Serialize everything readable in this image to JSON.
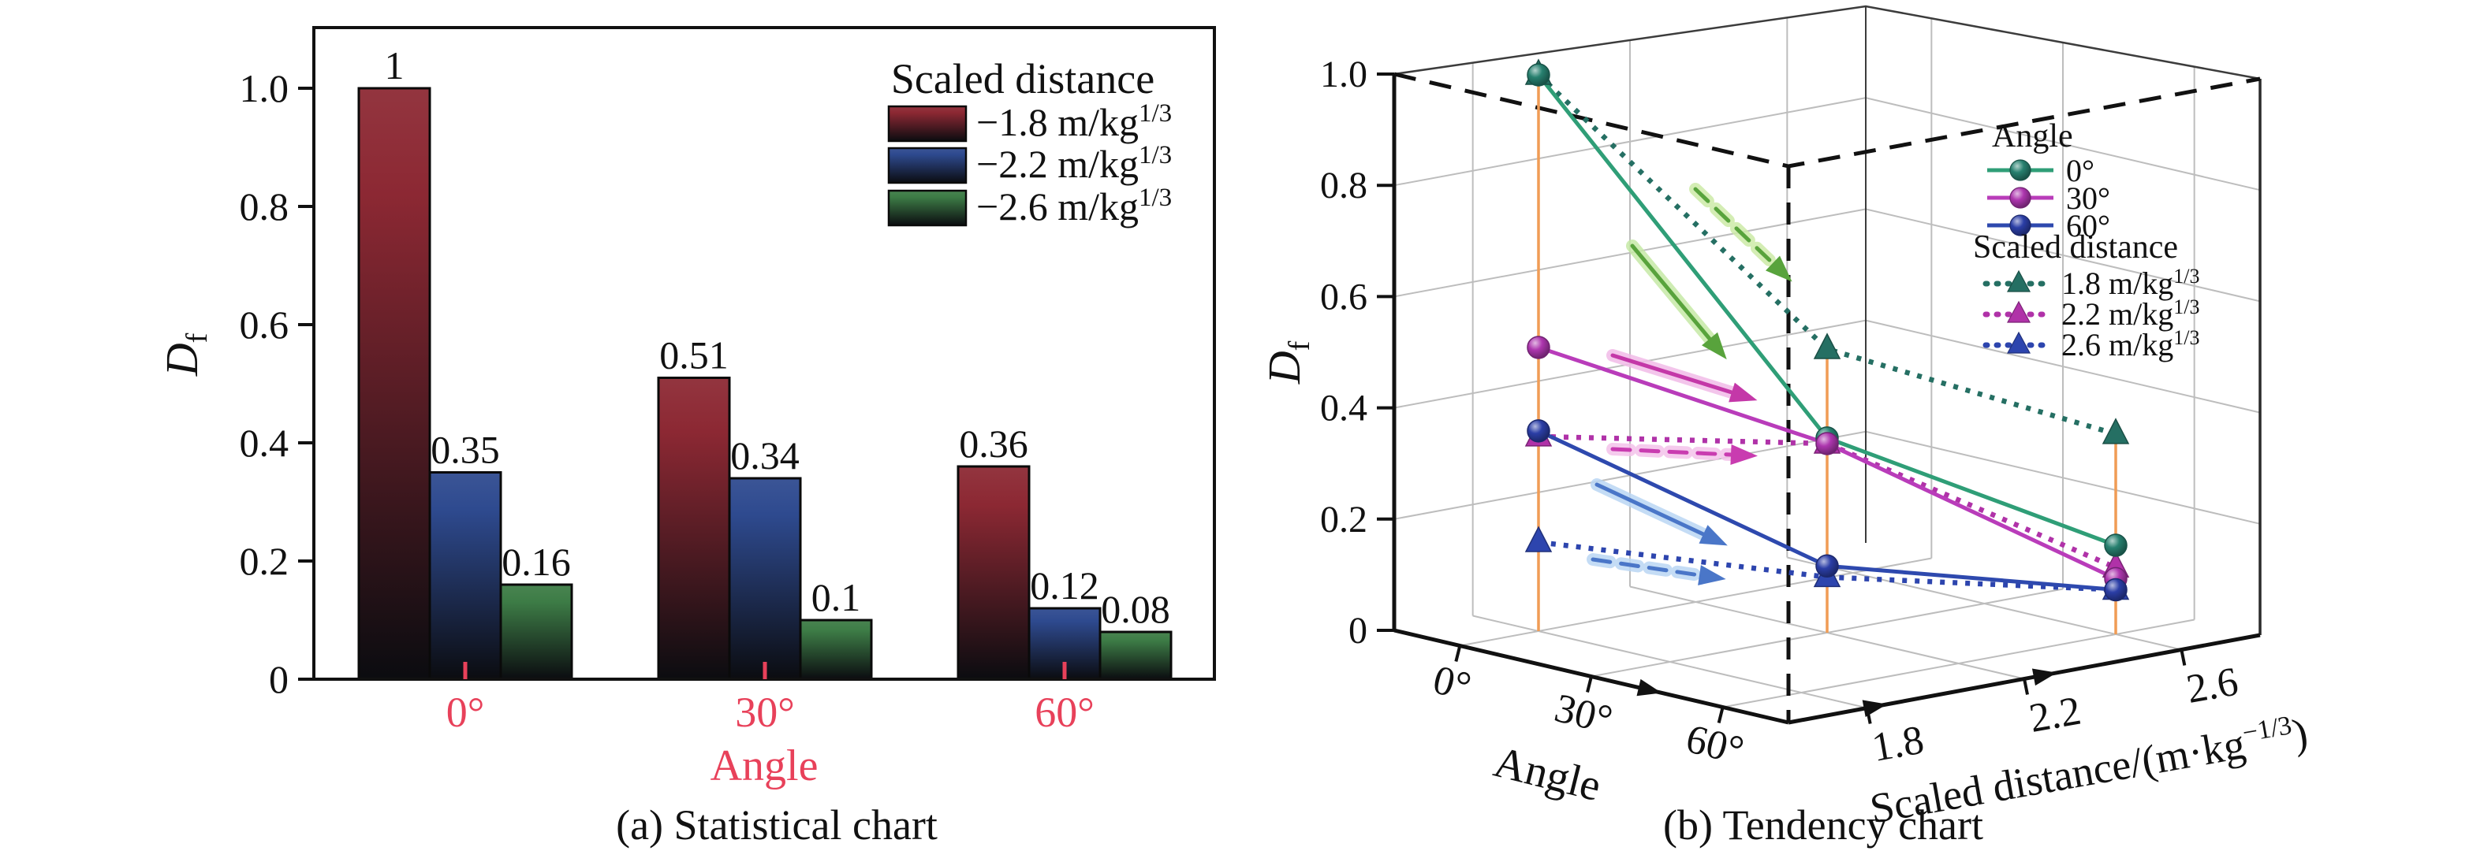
{
  "captions": {
    "a": "(a) Statistical chart",
    "b": "(b) Tendency chart"
  },
  "chart_data": [
    {
      "type": "bar",
      "panel": "a",
      "caption": "(a) Statistical chart",
      "xlabel": "Angle",
      "ylabel": "D",
      "ylabel_sub": "f",
      "categories": [
        "0°",
        "30°",
        "60°"
      ],
      "yticks": [
        {
          "v": 0.0,
          "label": "0"
        },
        {
          "v": 0.2,
          "label": "0.2"
        },
        {
          "v": 0.4,
          "label": "0.4"
        },
        {
          "v": 0.6,
          "label": "0.6"
        },
        {
          "v": 0.8,
          "label": "0.8"
        },
        {
          "v": 1.0,
          "label": "1.0"
        }
      ],
      "ylim": [
        0,
        1.1
      ],
      "grid": false,
      "x_axis_color": "#e8415a",
      "bar_gradient_bottom": "#0b0c10",
      "legend": {
        "title": "Scaled distance",
        "position": "upper-right",
        "items": [
          {
            "label": "−1.8 m/kg",
            "label_sup": "1/3"
          },
          {
            "label": "−2.2 m/kg",
            "label_sup": "1/3"
          },
          {
            "label": "−2.6 m/kg",
            "label_sup": "1/3"
          }
        ]
      },
      "series": [
        {
          "name": "−1.8 m/kg^1/3",
          "color": "#8c2833",
          "values": [
            1,
            0.51,
            0.36
          ],
          "labels": [
            "1",
            "0.51",
            "0.36"
          ]
        },
        {
          "name": "−2.2 m/kg^1/3",
          "color": "#2e4a8f",
          "values": [
            0.35,
            0.34,
            0.12
          ],
          "labels": [
            "0.35",
            "0.34",
            "0.12"
          ]
        },
        {
          "name": "−2.6 m/kg^1/3",
          "color": "#3d7c46",
          "values": [
            0.16,
            0.1,
            0.08
          ],
          "labels": [
            "0.16",
            "0.1",
            "0.08"
          ]
        }
      ]
    },
    {
      "type": "line3d",
      "panel": "b",
      "caption": "(b) Tendency chart",
      "zlabel": "D",
      "zlabel_sub": "f",
      "zticks": [
        {
          "v": 0.0,
          "label": "0"
        },
        {
          "v": 0.2,
          "label": "0.2"
        },
        {
          "v": 0.4,
          "label": "0.4"
        },
        {
          "v": 0.6,
          "label": "0.6"
        },
        {
          "v": 0.8,
          "label": "0.8"
        },
        {
          "v": 1.0,
          "label": "1.0"
        }
      ],
      "zlim": [
        0,
        1.0
      ],
      "angle_axis": {
        "title": "Angle",
        "ticks": [
          "0°",
          "30°",
          "60°"
        ]
      },
      "distance_axis": {
        "title_pre": "Scaled distance/(m·kg",
        "title_sup": "−1/3",
        "title_post": ")",
        "ticks": [
          "1.8",
          "2.2",
          "2.6"
        ]
      },
      "values_by_angle": [
        [
          1.0,
          0.35,
          0.16
        ],
        [
          0.51,
          0.34,
          0.1
        ],
        [
          0.36,
          0.12,
          0.08
        ]
      ],
      "angle_series": [
        {
          "name": "0°",
          "color": "#2f9e77",
          "marker_color": "#27806f",
          "marker": "circle",
          "line": "solid"
        },
        {
          "name": "30°",
          "color": "#b93cba",
          "marker_color": "#ad36ae",
          "marker": "circle",
          "line": "solid"
        },
        {
          "name": "60°",
          "color": "#2e49ae",
          "marker_color": "#2b3ea6",
          "marker": "circle",
          "line": "solid"
        }
      ],
      "distance_series": [
        {
          "name": "1.8 m/kg",
          "name_sup": "1/3",
          "color": "#256f63",
          "marker": "triangle",
          "line": "dotted"
        },
        {
          "name": "2.2 m/kg",
          "name_sup": "1/3",
          "color": "#b032a8",
          "marker": "triangle",
          "line": "dotted"
        },
        {
          "name": "2.6 m/kg",
          "name_sup": "1/3",
          "color": "#2d45ae",
          "marker": "triangle",
          "line": "dotted"
        }
      ],
      "legend": {
        "group1_title": "Angle",
        "group2_title": "Scaled distance"
      },
      "stem_color": "#f09c55",
      "grid_color": "#bdbdbd",
      "trend_arrows": [
        {
          "along": "0° line",
          "style": "solid",
          "color": "#58a33c",
          "glow": "#c6e9a6"
        },
        {
          "along": "1.8 m/kg^1/3 line",
          "style": "dashed",
          "color": "#58a33c",
          "glow": "#cdeaa8"
        },
        {
          "along": "30° line",
          "style": "solid",
          "color": "#c438a8",
          "glow": "#f2bce8"
        },
        {
          "along": "2.2 m/kg^1/3 line",
          "style": "dashed",
          "color": "#c93cb0",
          "glow": "#f4c2ea"
        },
        {
          "along": "60° line",
          "style": "solid",
          "color": "#4a76c8",
          "glow": "#bad6f4"
        },
        {
          "along": "2.6 m/kg^1/3 line",
          "style": "dashed",
          "color": "#4a76c8",
          "glow": "#bad6f4"
        }
      ]
    }
  ]
}
